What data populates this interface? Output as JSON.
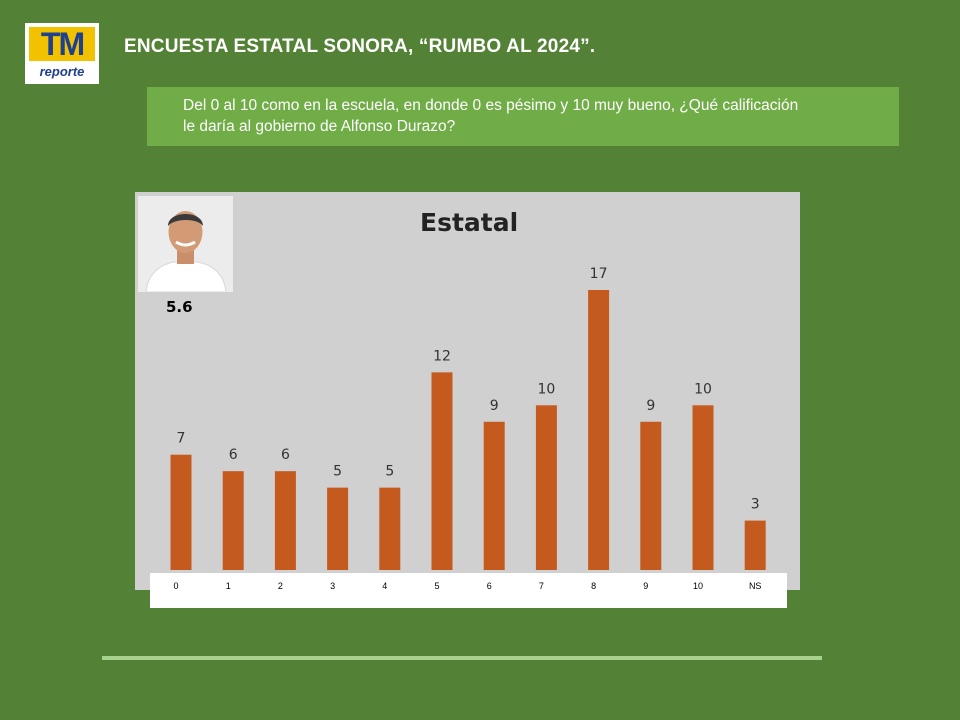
{
  "logo": {
    "main": "TM",
    "sub": "reporte"
  },
  "title": "ENCUESTA ESTATAL SONORA, “RUMBO AL 2024”.",
  "question": {
    "line1": "Del 0 al 10 como en la escuela, en donde 0 es pésimo y 10 muy bueno, ¿Qué calificación",
    "line2": "le daría al gobierno de Alfonso Durazo?"
  },
  "score": "5.6",
  "colors": {
    "bar": "#c55a1f",
    "background": "#538135",
    "panel": "#d0d0d0",
    "question_box": "#70ad47"
  },
  "chart_data": {
    "type": "bar",
    "title": "Estatal",
    "categories": [
      "0",
      "1",
      "2",
      "3",
      "4",
      "5",
      "6",
      "7",
      "8",
      "9",
      "10",
      "NS"
    ],
    "values": [
      7,
      6,
      6,
      5,
      5,
      12,
      9,
      10,
      17,
      9,
      10,
      3
    ],
    "xlabel": "",
    "ylabel": "",
    "ylim": [
      0,
      17
    ],
    "grid": false,
    "legend": "none"
  }
}
